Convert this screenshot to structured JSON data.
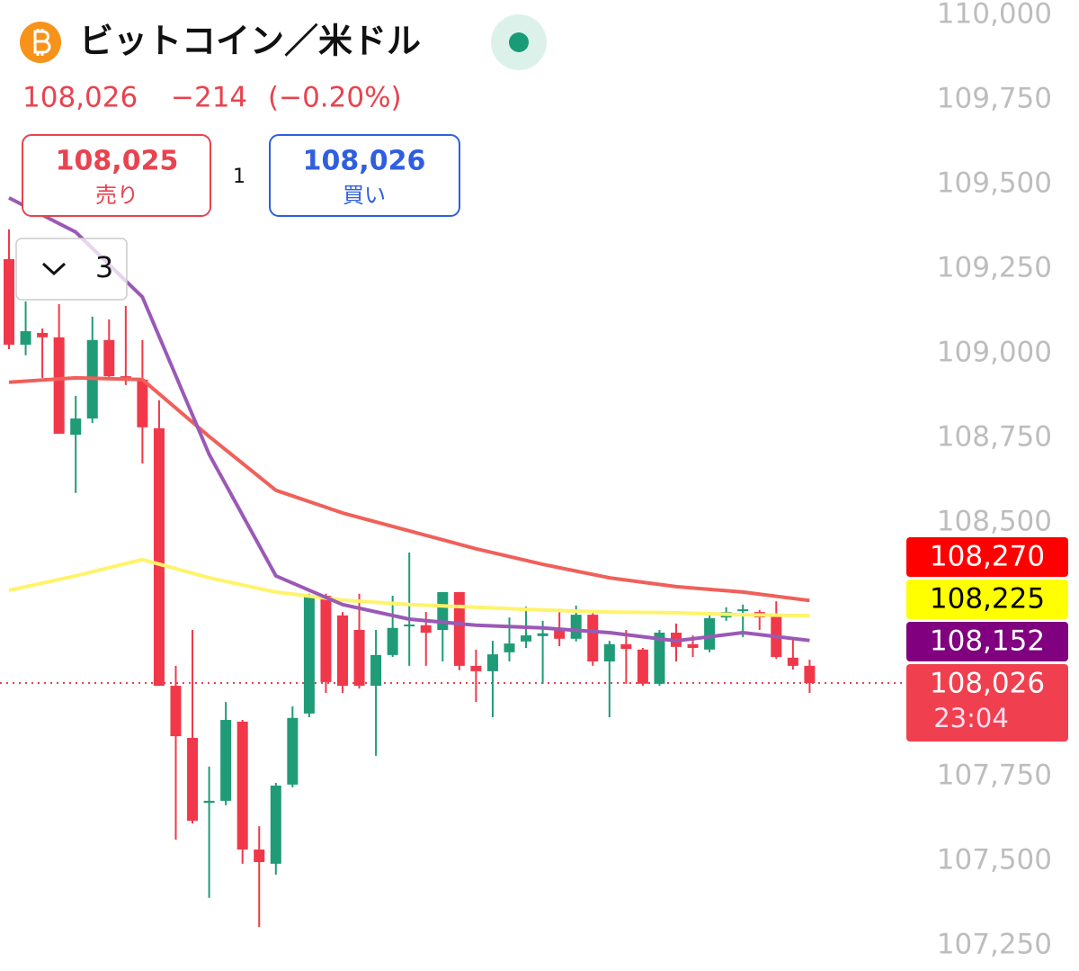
{
  "header": {
    "title": "ビットコイン／米ドル",
    "quote": {
      "price": "108,026",
      "change": "−214",
      "percent": "(−0.20%)"
    },
    "sell": {
      "price": "108,025",
      "label": "売り"
    },
    "spread": "1",
    "buy": {
      "price": "108,026",
      "label": "買い"
    },
    "dropdown": "3"
  },
  "chart_data": {
    "type": "candlestick",
    "up_color": "#1f9b77",
    "down_color": "#f0384a",
    "open": [
      109279,
      109026,
      109061,
      109048,
      108760,
      108808,
      109040,
      108933,
      108923,
      108779,
      108018,
      107864,
      107672,
      107678,
      107912,
      107534,
      107492,
      107726,
      107936,
      108284,
      108226,
      108183,
      108018,
      108109,
      108197,
      108197,
      108183,
      108295,
      108077,
      108061,
      108117,
      108149,
      108165,
      108183,
      108157,
      108228,
      108090,
      108141,
      108125,
      108024,
      108175,
      108141,
      108125,
      108220,
      108239,
      108236,
      108226,
      108101,
      108077
    ],
    "high": [
      109367,
      109154,
      109074,
      109146,
      108875,
      109109,
      109101,
      109141,
      109040,
      108862,
      108077,
      108183,
      107779,
      107970,
      107917,
      107603,
      107731,
      107957,
      108290,
      108290,
      108236,
      108290,
      108183,
      108284,
      108412,
      108236,
      108295,
      108295,
      108125,
      108151,
      108220,
      108252,
      108210,
      108242,
      108255,
      108236,
      108151,
      108183,
      108130,
      108183,
      108202,
      108167,
      108228,
      108250,
      108258,
      108242,
      108268,
      108162,
      108095
    ],
    "low": [
      109013,
      108995,
      108928,
      108763,
      108588,
      108795,
      108928,
      108907,
      108675,
      108018,
      107563,
      107611,
      107391,
      107665,
      107492,
      107305,
      107460,
      107718,
      107925,
      107997,
      107997,
      108010,
      107811,
      108103,
      108077,
      108077,
      108090,
      108064,
      107970,
      107925,
      108090,
      108130,
      108024,
      108135,
      108149,
      108077,
      107925,
      108024,
      108018,
      108018,
      108090,
      108103,
      108117,
      108210,
      108162,
      108183,
      108098,
      108066,
      107997
    ],
    "close": [
      109026,
      109066,
      109048,
      108763,
      108808,
      109040,
      108933,
      108923,
      108782,
      108018,
      107869,
      107619,
      107678,
      107917,
      107534,
      107497,
      107723,
      107923,
      108284,
      108029,
      108018,
      108018,
      108109,
      108189,
      108199,
      108175,
      108295,
      108077,
      108061,
      108111,
      108143,
      108167,
      108173,
      108157,
      108228,
      108090,
      108141,
      108127,
      108024,
      108175,
      108133,
      108130,
      108218,
      108236,
      108244,
      108220,
      108103,
      108077,
      108026
    ],
    "series": [
      {
        "color": "#f0605a",
        "x": [
          0,
          4,
          8,
          12,
          16,
          20,
          24,
          28,
          32,
          36,
          40,
          44,
          48
        ],
        "values": [
          108915,
          108928,
          108923,
          108755,
          108596,
          108529,
          108476,
          108423,
          108377,
          108337,
          108311,
          108295,
          108270
        ],
        "label_bg": "#ff0000",
        "label_color": "#ffffff",
        "value_labels": [
          null,
          null,
          null,
          null,
          null,
          null,
          null,
          null,
          null,
          null,
          null,
          null,
          "108,270"
        ]
      },
      {
        "color": "#fff36a",
        "x": [
          0,
          4,
          8,
          12,
          16,
          20,
          24,
          28,
          32,
          36,
          40,
          44,
          48
        ],
        "values": [
          108300,
          108343,
          108391,
          108337,
          108295,
          108271,
          108258,
          108250,
          108242,
          108236,
          108234,
          108228,
          108225
        ],
        "label_bg": "#ffff00",
        "label_color": "#000000",
        "value_labels": [
          null,
          null,
          null,
          null,
          null,
          null,
          null,
          null,
          null,
          null,
          null,
          null,
          "108,225"
        ]
      },
      {
        "color": "#9b59b6",
        "x": [
          0,
          4,
          8,
          12,
          16,
          20,
          24,
          28,
          32,
          36,
          40,
          44,
          48
        ],
        "values": [
          109460,
          109359,
          109167,
          108702,
          108343,
          108258,
          108215,
          108197,
          108189,
          108175,
          108151,
          108175,
          108152
        ],
        "label_bg": "#800080",
        "label_color": "#ffffff",
        "value_labels": [
          null,
          null,
          null,
          null,
          null,
          null,
          null,
          null,
          null,
          null,
          null,
          null,
          "108,152"
        ]
      }
    ],
    "price_tag": {
      "value": 108026,
      "label": "108,026"
    },
    "countdown": "23:04",
    "ylim": [
      107175,
      110045
    ],
    "yticks": [
      {
        "value": 110000,
        "label": "110,000"
      },
      {
        "value": 109750,
        "label": "109,750"
      },
      {
        "value": 109500,
        "label": "109,500"
      },
      {
        "value": 109250,
        "label": "109,250"
      },
      {
        "value": 109000,
        "label": "109,000"
      },
      {
        "value": 108750,
        "label": "108,750"
      },
      {
        "value": 108500,
        "label": "108,500"
      },
      {
        "value": 108250,
        "label": "108,250"
      },
      {
        "value": 108000,
        "label": "108,000"
      },
      {
        "value": 107750,
        "label": "107,750"
      },
      {
        "value": 107500,
        "label": "107,500"
      },
      {
        "value": 107250,
        "label": "107,250"
      }
    ]
  }
}
